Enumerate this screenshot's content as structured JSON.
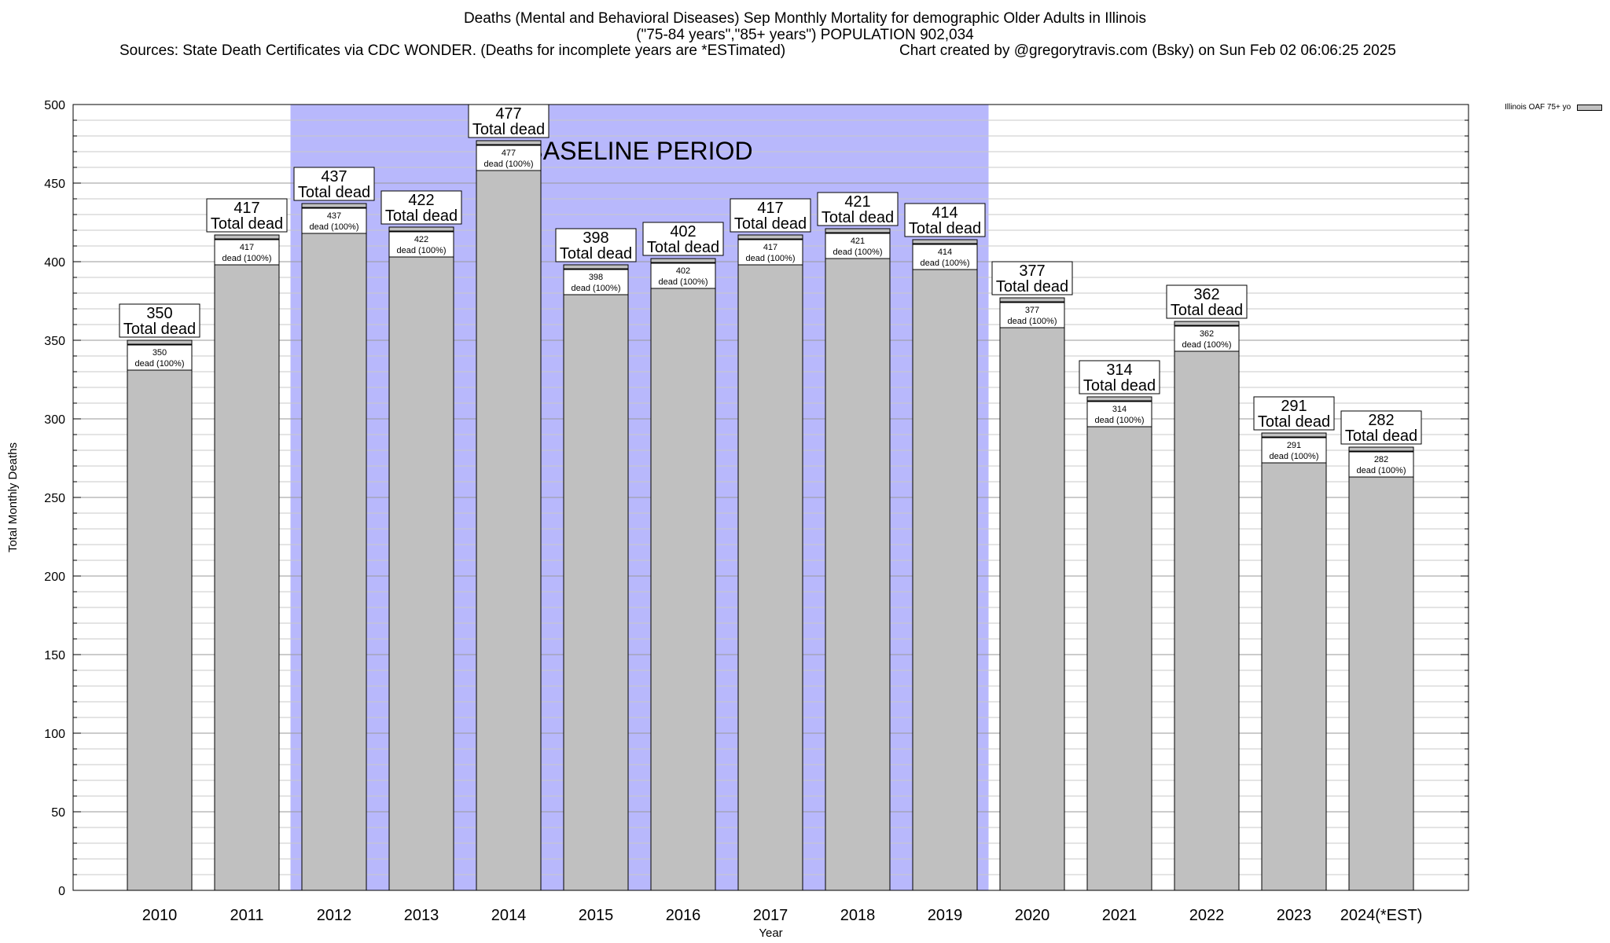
{
  "title": {
    "line1": "Deaths (Mental and Behavioral Diseases) Sep Monthly Mortality for demographic Older Adults in Illinois",
    "line2": "(\"75-84 years\",\"85+ years\") POPULATION 902,034",
    "sources": "Sources: State Death Certificates via CDC WONDER. (Deaths for incomplete years are *ESTimated)",
    "credit": "Chart created by @gregorytravis.com (Bsky) on Sun Feb 02 06:06:25 2025"
  },
  "chart_data": {
    "type": "bar",
    "categories": [
      "2010",
      "2011",
      "2012",
      "2013",
      "2014",
      "2015",
      "2016",
      "2017",
      "2018",
      "2019",
      "2020",
      "2021",
      "2022",
      "2023",
      "2024(*EST)"
    ],
    "series": [
      {
        "name": "Illinois OAF 75+ yo",
        "values": [
          350,
          417,
          437,
          422,
          477,
          398,
          402,
          417,
          421,
          414,
          377,
          314,
          362,
          291,
          282
        ]
      }
    ],
    "xlabel": "Year",
    "ylabel": "Total Monthly Deaths",
    "ylim": [
      0,
      500
    ],
    "yticks": [
      0,
      50,
      100,
      150,
      200,
      250,
      300,
      350,
      400,
      450,
      500
    ],
    "grid": true,
    "legend_position": "top-right",
    "bar_color": "#c0c0c0",
    "baseline_period": {
      "label": "BASELINE PERIOD",
      "from": "2012",
      "to": "2019",
      "color": "#b8b8fc"
    },
    "label_total_text": "Total dead",
    "label_inner_text": "dead (100%)"
  }
}
